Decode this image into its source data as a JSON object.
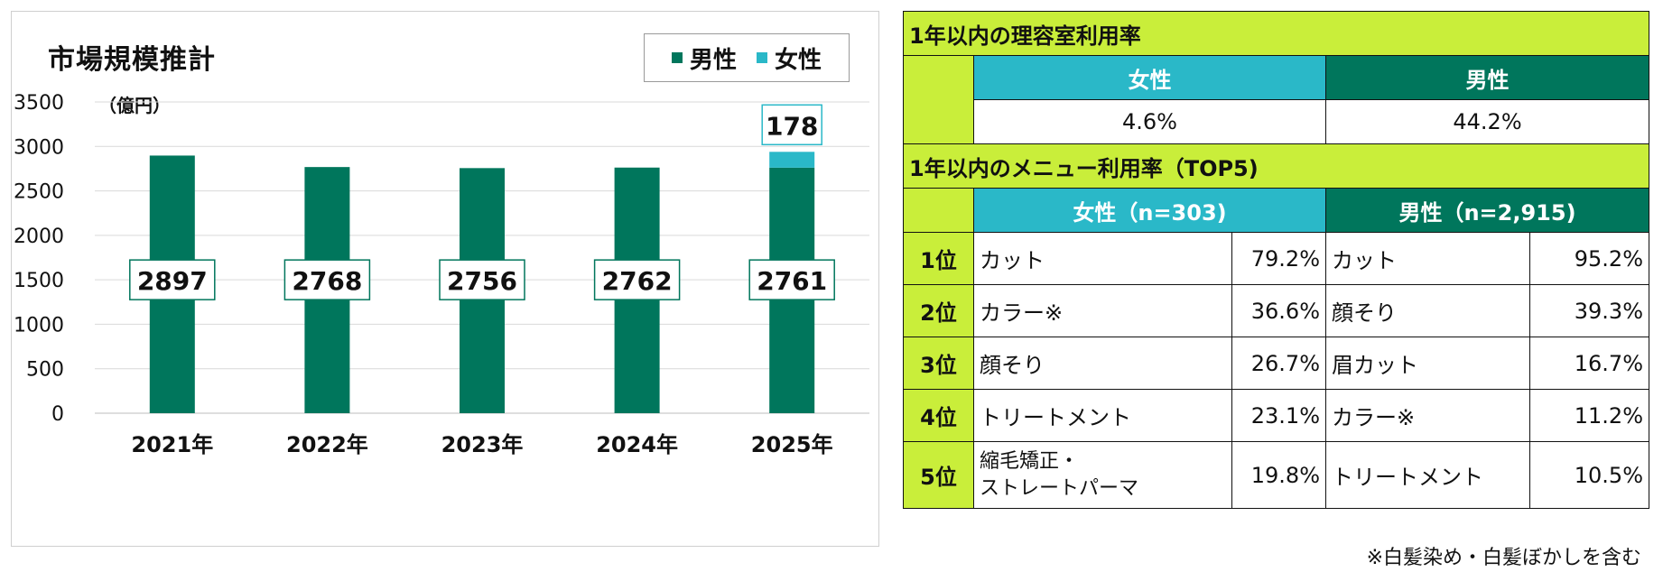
{
  "chart_data": {
    "type": "bar",
    "title": "市場規模推計",
    "unit": "（億円）",
    "categories": [
      "2021年",
      "2022年",
      "2023年",
      "2024年",
      "2025年"
    ],
    "series": [
      {
        "name": "男性",
        "values": [
          2897,
          2768,
          2756,
          2762,
          2761
        ]
      },
      {
        "name": "女性",
        "values": [
          0,
          0,
          0,
          0,
          178
        ]
      }
    ],
    "data_labels": {
      "男性": [
        "2897",
        "2768",
        "2756",
        "2762",
        "2761"
      ],
      "女性": [
        "",
        "",
        "",
        "",
        "178"
      ]
    },
    "ylim": [
      0,
      3500
    ],
    "yticks": [
      "0",
      "500",
      "1000",
      "1500",
      "2000",
      "2500",
      "3000",
      "3500"
    ],
    "stacked": true,
    "grid": true,
    "legend_position": "top-right",
    "colors": {
      "男性": "#00765c",
      "女性": "#2ab8c8"
    }
  },
  "table": {
    "section1_title": "1年以内の理容室利用率",
    "usage_headers": [
      "女性",
      "男性"
    ],
    "usage_values": [
      "4.6%",
      "44.2%"
    ],
    "section2_title": "1年以内のメニュー利用率（TOP5)",
    "menu_headers": [
      "女性（n=303)",
      "男性（n=2,915)"
    ],
    "rows": [
      {
        "rank": "1位",
        "f_item": "カット",
        "f_val": "79.2%",
        "m_item": "カット",
        "m_val": "95.2%"
      },
      {
        "rank": "2位",
        "f_item": "カラー※",
        "f_val": "36.6%",
        "m_item": "顔そり",
        "m_val": "39.3%"
      },
      {
        "rank": "3位",
        "f_item": "顔そり",
        "f_val": "26.7%",
        "m_item": "眉カット",
        "m_val": "16.7%"
      },
      {
        "rank": "4位",
        "f_item": "トリートメント",
        "f_val": "23.1%",
        "m_item": "カラー※",
        "m_val": "11.2%"
      },
      {
        "rank": "5位",
        "f_item_line1": "縮毛矯正・",
        "f_item_line2": "ストレートパーマ",
        "f_val": "19.8%",
        "m_item": "トリートメント",
        "m_val": "10.5%"
      }
    ],
    "colors": {
      "section": "#c9ee3a",
      "female": "#2ab8c8",
      "male": "#00765c"
    }
  },
  "footnote": "※白髪染め・白髪ぼかしを含む"
}
